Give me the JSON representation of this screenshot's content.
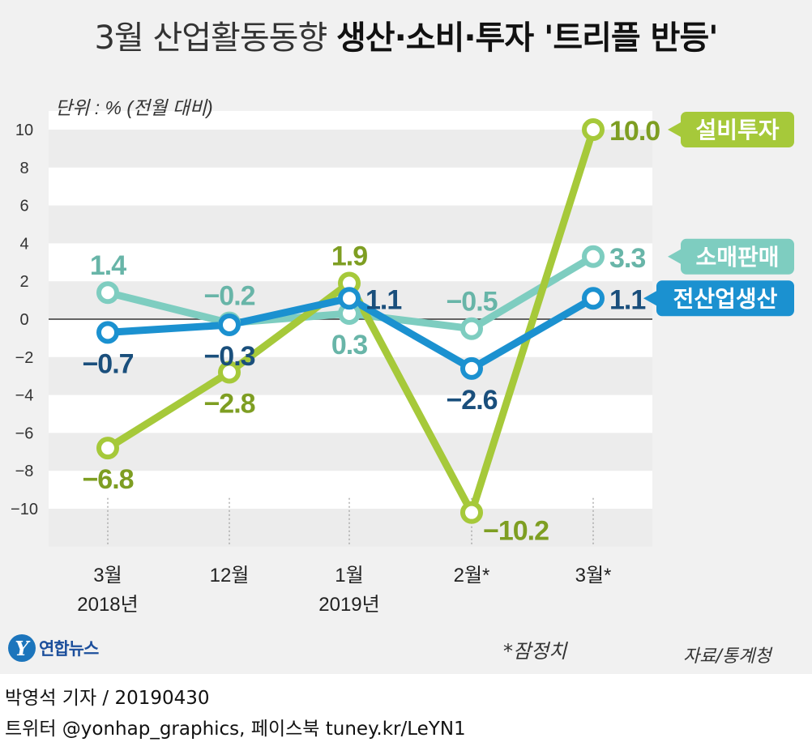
{
  "title": {
    "light": "3월 산업활동동향",
    "bold": "생산·소비·투자 '트리플 반등'"
  },
  "chart_data": {
    "type": "line",
    "unit_label": "단위 : % (전월 대비)",
    "categories": [
      {
        "line1": "3월",
        "line2": "2018년"
      },
      {
        "line1": "12월",
        "line2": ""
      },
      {
        "line1": "1월",
        "line2": "2019년"
      },
      {
        "line1": "2월*",
        "line2": ""
      },
      {
        "line1": "3월*",
        "line2": ""
      }
    ],
    "ylim": [
      -12,
      10
    ],
    "yticks": [
      10,
      8,
      6,
      4,
      2,
      0,
      -2,
      -4,
      -6,
      -8,
      -10
    ],
    "ytick_labels": [
      "10",
      "8",
      "6",
      "4",
      "2",
      "0",
      "−2",
      "−4",
      "−6",
      "−8",
      "−10"
    ],
    "series": [
      {
        "name": "소매판매",
        "color": "#7ecdc0",
        "label_color": "#68b5a8",
        "values": [
          1.4,
          -0.2,
          0.3,
          -0.5,
          3.3
        ],
        "labels": [
          "1.4",
          "−0.2",
          "0.3",
          "−0.5",
          "3.3"
        ],
        "label_pos": [
          "above",
          "above",
          "below",
          "above",
          "right"
        ]
      },
      {
        "name": "설비투자",
        "color": "#a6c93a",
        "label_color": "#7e9e22",
        "values": [
          -6.8,
          -2.8,
          1.9,
          -10.2,
          10.0
        ],
        "labels": [
          "−6.8",
          "−2.8",
          "1.9",
          "−10.2",
          "10.0"
        ],
        "label_pos": [
          "below",
          "below",
          "above",
          "right",
          "right"
        ]
      },
      {
        "name": "전산업생산",
        "color": "#1b91d0",
        "label_color": "#1a4f7c",
        "values": [
          -0.7,
          -0.3,
          1.1,
          -2.6,
          1.1
        ],
        "labels": [
          "−0.7",
          "−0.3",
          "1.1",
          "−2.6",
          "1.1"
        ],
        "label_pos": [
          "below",
          "below",
          "right",
          "below",
          "right"
        ]
      }
    ],
    "legend_placement": "right",
    "grid": "alternating bands"
  },
  "footer": {
    "logo_text": "연합뉴스",
    "logo_mark": "Y",
    "prelim_note": "*잠정치",
    "source": "자료/통계청",
    "credit": "박영석 기자 /  20190430",
    "social": "트위터 @yonhap_graphics, 페이스북 tuney.kr/LeYN1"
  }
}
